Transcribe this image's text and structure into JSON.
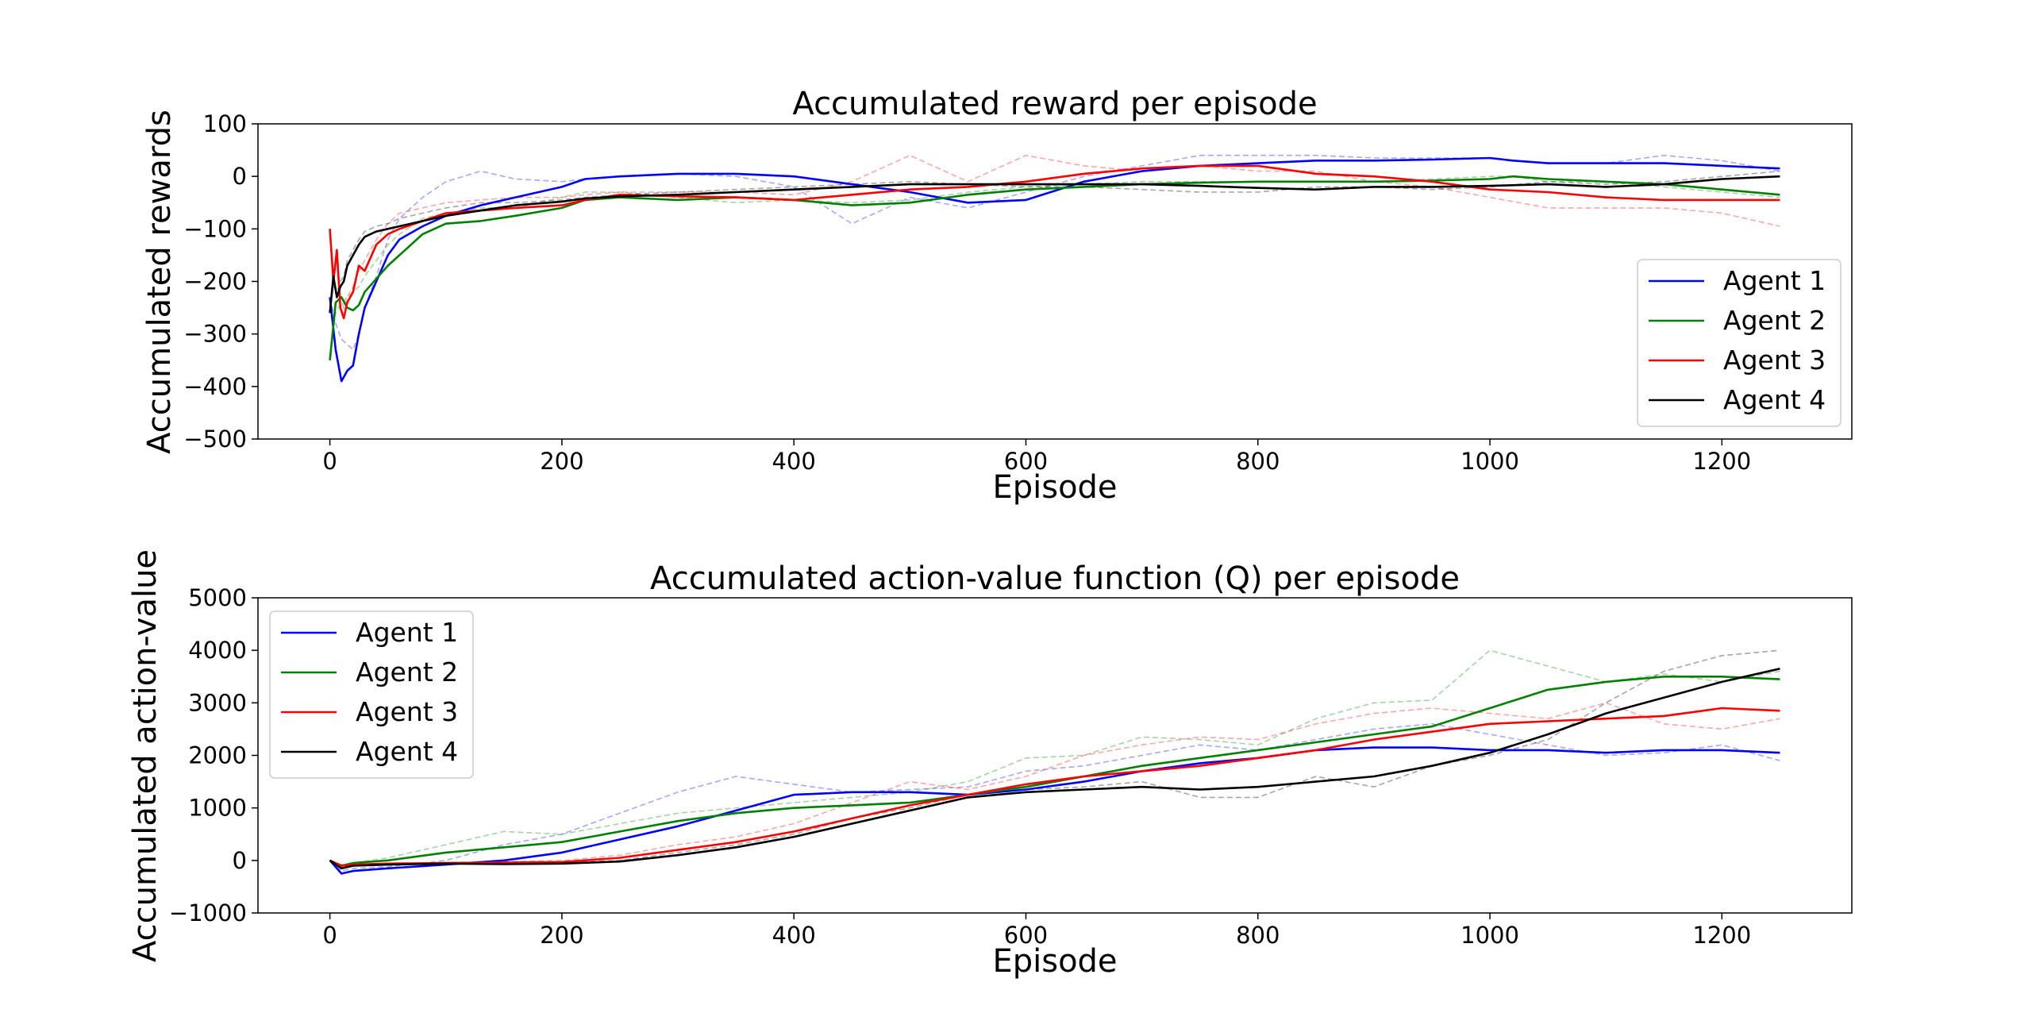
{
  "chart_data": [
    {
      "type": "line",
      "title": "Accumulated reward per episode",
      "xlabel": "Episode",
      "ylabel": "Accumulated rewards",
      "xlim": [
        -62,
        1312
      ],
      "ylim": [
        -500,
        100
      ],
      "xticks": [
        0,
        200,
        400,
        600,
        800,
        1000,
        1200
      ],
      "xtick_labels": [
        "0",
        "200",
        "400",
        "600",
        "800",
        "1000",
        "1200"
      ],
      "yticks": [
        -500,
        -400,
        -300,
        -200,
        -100,
        0,
        100
      ],
      "ytick_labels": [
        "−500",
        "−400",
        "−300",
        "−200",
        "−100",
        "0",
        "100"
      ],
      "grid": false,
      "legend_position": "lower-right",
      "series": [
        {
          "name": "Agent 1",
          "color": "#0000ff",
          "x": [
            0,
            5,
            10,
            15,
            20,
            25,
            30,
            40,
            50,
            60,
            80,
            100,
            130,
            160,
            200,
            220,
            250,
            300,
            350,
            400,
            450,
            500,
            550,
            600,
            650,
            700,
            750,
            800,
            850,
            900,
            950,
            1000,
            1020,
            1050,
            1100,
            1150,
            1200,
            1250
          ],
          "values": [
            -230,
            -330,
            -390,
            -370,
            -360,
            -300,
            -250,
            -200,
            -150,
            -120,
            -95,
            -75,
            -55,
            -40,
            -20,
            -5,
            0,
            5,
            5,
            0,
            -15,
            -30,
            -50,
            -45,
            -10,
            10,
            20,
            25,
            30,
            30,
            32,
            35,
            30,
            25,
            25,
            25,
            20,
            15
          ],
          "smoothed": [
            -230,
            -280,
            -310,
            -320,
            -330,
            -300,
            -250,
            -190,
            -120,
            -80,
            -40,
            -10,
            10,
            -5,
            -10,
            -5,
            0,
            5,
            0,
            -20,
            -90,
            -40,
            -60,
            -30,
            0,
            20,
            40,
            40,
            40,
            35,
            35,
            35,
            30,
            25,
            25,
            40,
            30,
            10
          ]
        },
        {
          "name": "Agent 2",
          "color": "#008000",
          "x": [
            0,
            5,
            10,
            15,
            20,
            25,
            30,
            40,
            50,
            60,
            80,
            100,
            130,
            160,
            200,
            220,
            250,
            300,
            350,
            400,
            450,
            500,
            550,
            600,
            650,
            700,
            750,
            800,
            850,
            900,
            950,
            1000,
            1020,
            1050,
            1100,
            1150,
            1200,
            1250
          ],
          "values": [
            -350,
            -240,
            -230,
            -250,
            -255,
            -245,
            -220,
            -195,
            -170,
            -150,
            -110,
            -90,
            -85,
            -75,
            -60,
            -45,
            -40,
            -45,
            -40,
            -45,
            -55,
            -50,
            -35,
            -25,
            -20,
            -15,
            -12,
            -10,
            -10,
            -10,
            -8,
            -5,
            0,
            -5,
            -10,
            -15,
            -25,
            -35
          ],
          "smoothed": [
            -350,
            -260,
            -240,
            -230,
            -220,
            -210,
            -190,
            -160,
            -130,
            -110,
            -80,
            -70,
            -60,
            -60,
            -40,
            -30,
            -30,
            -40,
            -50,
            -45,
            -50,
            -45,
            -30,
            -20,
            -15,
            -10,
            -10,
            -10,
            -10,
            -10,
            -5,
            0,
            0,
            -10,
            -10,
            -20,
            -30,
            -40
          ]
        },
        {
          "name": "Agent 3",
          "color": "#ff0000",
          "x": [
            0,
            3,
            6,
            9,
            12,
            15,
            20,
            25,
            30,
            40,
            50,
            60,
            80,
            100,
            130,
            160,
            200,
            220,
            250,
            300,
            350,
            400,
            450,
            500,
            550,
            600,
            650,
            700,
            750,
            800,
            850,
            900,
            950,
            1000,
            1050,
            1100,
            1150,
            1200,
            1250
          ],
          "values": [
            -100,
            -200,
            -140,
            -250,
            -270,
            -240,
            -220,
            -170,
            -180,
            -130,
            -110,
            -100,
            -85,
            -70,
            -65,
            -60,
            -55,
            -45,
            -35,
            -38,
            -40,
            -45,
            -35,
            -25,
            -20,
            -10,
            5,
            15,
            20,
            20,
            5,
            0,
            -10,
            -25,
            -30,
            -40,
            -45,
            -45,
            -45
          ],
          "smoothed": [
            -100,
            -180,
            -160,
            -230,
            -250,
            -230,
            -210,
            -180,
            -160,
            -120,
            -90,
            -70,
            -60,
            -50,
            -45,
            -40,
            -40,
            -35,
            -30,
            -30,
            -30,
            -35,
            -10,
            40,
            -10,
            40,
            20,
            10,
            20,
            10,
            10,
            -10,
            -20,
            -40,
            -60,
            -60,
            -60,
            -70,
            -95
          ]
        },
        {
          "name": "Agent 4",
          "color": "#000000",
          "x": [
            0,
            3,
            6,
            9,
            12,
            15,
            20,
            25,
            30,
            40,
            50,
            60,
            80,
            100,
            130,
            160,
            200,
            220,
            250,
            300,
            350,
            400,
            450,
            500,
            550,
            600,
            650,
            700,
            750,
            800,
            850,
            900,
            950,
            1000,
            1050,
            1100,
            1150,
            1200,
            1250
          ],
          "values": [
            -260,
            -190,
            -230,
            -210,
            -200,
            -170,
            -150,
            -130,
            -115,
            -105,
            -100,
            -95,
            -85,
            -75,
            -65,
            -55,
            -48,
            -42,
            -38,
            -35,
            -30,
            -25,
            -20,
            -15,
            -15,
            -15,
            -15,
            -15,
            -18,
            -22,
            -25,
            -20,
            -20,
            -18,
            -15,
            -20,
            -15,
            -5,
            0
          ],
          "smoothed": [
            -260,
            -210,
            -220,
            -200,
            -190,
            -160,
            -140,
            -120,
            -105,
            -95,
            -90,
            -80,
            -70,
            -60,
            -50,
            -50,
            -45,
            -40,
            -35,
            -30,
            -25,
            -20,
            -15,
            -10,
            -15,
            -20,
            -20,
            -25,
            -30,
            -30,
            -20,
            -20,
            -25,
            -20,
            -10,
            -15,
            -10,
            0,
            10
          ]
        }
      ]
    },
    {
      "type": "line",
      "title": "Accumulated action-value function (Q) per episode",
      "xlabel": "Episode",
      "ylabel": "Accumulated action-value",
      "xlim": [
        -62,
        1312
      ],
      "ylim": [
        -1000,
        5000
      ],
      "xticks": [
        0,
        200,
        400,
        600,
        800,
        1000,
        1200
      ],
      "xtick_labels": [
        "0",
        "200",
        "400",
        "600",
        "800",
        "1000",
        "1200"
      ],
      "yticks": [
        -1000,
        0,
        1000,
        2000,
        3000,
        4000,
        5000
      ],
      "ytick_labels": [
        "−1000",
        "0",
        "1000",
        "2000",
        "3000",
        "4000",
        "5000"
      ],
      "grid": false,
      "legend_position": "upper-left",
      "series": [
        {
          "name": "Agent 1",
          "color": "#0000ff",
          "x": [
            0,
            10,
            20,
            50,
            100,
            150,
            200,
            250,
            300,
            350,
            400,
            450,
            500,
            550,
            600,
            650,
            700,
            750,
            800,
            850,
            900,
            950,
            1000,
            1050,
            1100,
            1150,
            1200,
            1250
          ],
          "values": [
            0,
            -250,
            -200,
            -150,
            -80,
            0,
            150,
            400,
            650,
            950,
            1250,
            1300,
            1300,
            1250,
            1350,
            1500,
            1700,
            1850,
            1950,
            2100,
            2150,
            2150,
            2100,
            2100,
            2050,
            2100,
            2100,
            2050
          ],
          "smoothed": [
            0,
            -200,
            -150,
            -120,
            0,
            300,
            500,
            900,
            1300,
            1600,
            1450,
            1300,
            1350,
            1400,
            1700,
            1800,
            2000,
            2200,
            2100,
            2300,
            2500,
            2600,
            2400,
            2200,
            2000,
            2050,
            2200,
            1900
          ]
        },
        {
          "name": "Agent 2",
          "color": "#008000",
          "x": [
            0,
            10,
            20,
            50,
            100,
            150,
            200,
            250,
            300,
            350,
            400,
            450,
            500,
            550,
            600,
            650,
            700,
            750,
            800,
            850,
            900,
            950,
            1000,
            1050,
            1100,
            1150,
            1200,
            1250
          ],
          "values": [
            0,
            -100,
            -50,
            0,
            150,
            250,
            350,
            550,
            750,
            900,
            1000,
            1050,
            1100,
            1250,
            1400,
            1600,
            1800,
            1950,
            2100,
            2250,
            2400,
            2550,
            2900,
            3250,
            3400,
            3500,
            3500,
            3450
          ],
          "smoothed": [
            0,
            -80,
            -50,
            50,
            300,
            550,
            500,
            700,
            900,
            1000,
            1100,
            1200,
            1300,
            1500,
            1950,
            2000,
            2350,
            2300,
            2200,
            2700,
            3000,
            3050,
            4000,
            3700,
            3400,
            3550,
            3400,
            3600
          ]
        },
        {
          "name": "Agent 3",
          "color": "#ff0000",
          "x": [
            0,
            10,
            20,
            50,
            100,
            150,
            200,
            250,
            300,
            350,
            400,
            450,
            500,
            550,
            600,
            650,
            700,
            750,
            800,
            850,
            900,
            950,
            1000,
            1050,
            1100,
            1150,
            1200,
            1250
          ],
          "values": [
            0,
            -100,
            -80,
            -60,
            -50,
            -40,
            -30,
            50,
            200,
            350,
            550,
            800,
            1050,
            1250,
            1450,
            1600,
            1700,
            1800,
            1950,
            2100,
            2300,
            2450,
            2600,
            2650,
            2700,
            2750,
            2900,
            2850
          ],
          "smoothed": [
            0,
            -90,
            -80,
            -60,
            -40,
            -20,
            0,
            100,
            300,
            450,
            700,
            1100,
            1500,
            1350,
            1600,
            2000,
            2200,
            2350,
            2300,
            2600,
            2800,
            2900,
            2800,
            2700,
            3000,
            2600,
            2500,
            2700
          ]
        },
        {
          "name": "Agent 4",
          "color": "#000000",
          "x": [
            0,
            10,
            20,
            50,
            100,
            150,
            200,
            250,
            300,
            350,
            400,
            450,
            500,
            550,
            600,
            650,
            700,
            750,
            800,
            850,
            900,
            950,
            1000,
            1050,
            1100,
            1150,
            1200,
            1250
          ],
          "values": [
            0,
            -150,
            -100,
            -80,
            -60,
            -70,
            -60,
            -20,
            100,
            250,
            450,
            700,
            950,
            1200,
            1300,
            1350,
            1400,
            1350,
            1400,
            1500,
            1600,
            1800,
            2050,
            2400,
            2800,
            3100,
            3400,
            3650
          ],
          "smoothed": [
            0,
            -120,
            -100,
            -80,
            -60,
            -60,
            -40,
            0,
            150,
            300,
            500,
            800,
            1000,
            1250,
            1350,
            1400,
            1500,
            1200,
            1200,
            1600,
            1400,
            1800,
            2000,
            2300,
            3000,
            3600,
            3900,
            4000
          ]
        }
      ]
    }
  ]
}
